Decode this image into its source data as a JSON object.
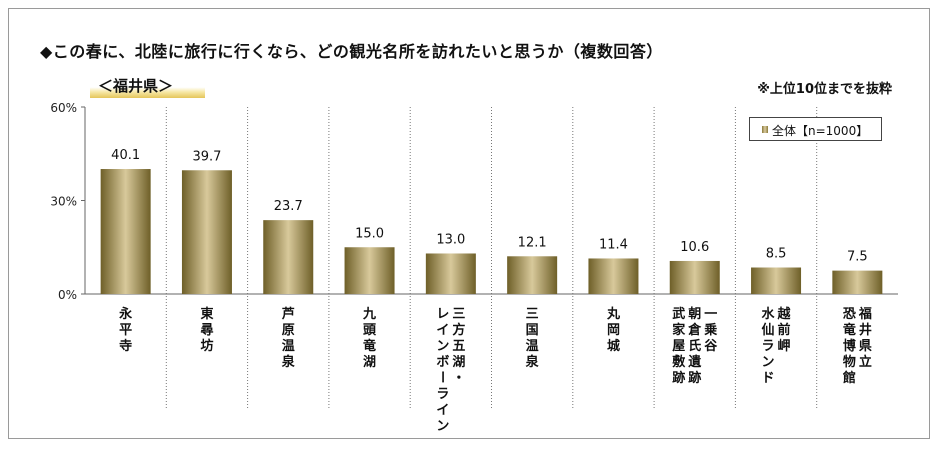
{
  "title": "◆この春に、北陸に旅行に行くなら、どの観光名所を訪れたいと思うか（複数回答）",
  "subtitle": "＜福井県＞",
  "note": "※上位10位までを抜粋",
  "colors": {
    "bar_dark": "#7a6a2e",
    "bar_light": "#d8c99b",
    "subtitle_highlight": "#e4c55a"
  },
  "chart_data": {
    "type": "bar",
    "title": "◆この春に、北陸に旅行に行くなら、どの観光名所を訪れたいと思うか（複数回答）",
    "subtitle": "＜福井県＞",
    "categories": [
      "永平寺",
      "東尋坊",
      "芦原温泉",
      "九頭竜湖",
      "三方五湖・レインボーライン",
      "三国温泉",
      "丸岡城",
      "一乗谷朝倉氏遺跡武家屋敷跡",
      "越前岬水仙ランド",
      "福井県立恐竜博物館"
    ],
    "category_columns": [
      [
        "永平寺"
      ],
      [
        "東尋坊"
      ],
      [
        "芦原温泉"
      ],
      [
        "九頭竜湖"
      ],
      [
        "三方五湖・",
        "レインボーライン"
      ],
      [
        "三国温泉"
      ],
      [
        "丸岡城"
      ],
      [
        "一乗谷",
        "朝倉氏遺跡",
        "武家屋敷跡"
      ],
      [
        "越前岬",
        "水仙ランド"
      ],
      [
        "福井県立",
        "恐竜博物館"
      ]
    ],
    "series": [
      {
        "name": "全体【n=1000】",
        "values": [
          40.1,
          39.7,
          23.7,
          15.0,
          13.0,
          12.1,
          11.4,
          10.6,
          8.5,
          7.5
        ]
      }
    ],
    "value_labels": [
      "40.1",
      "39.7",
      "23.7",
      "15.0",
      "13.0",
      "12.1",
      "11.4",
      "10.6",
      "8.5",
      "7.5"
    ],
    "yticks": [
      "0%",
      "30%",
      "60%"
    ],
    "ytick_values": [
      0,
      30,
      60
    ],
    "ylim": [
      0,
      60
    ],
    "legend_position": "top-right",
    "grid": false
  }
}
